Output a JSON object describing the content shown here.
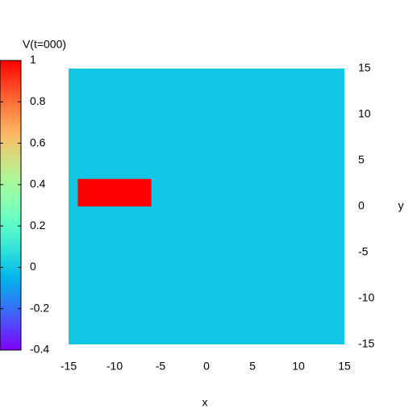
{
  "chart_data": {
    "type": "heatmap",
    "xlabel": "x",
    "ylabel": "y",
    "xlim": [
      -15,
      15
    ],
    "xticks": [
      -15,
      -10,
      -5,
      0,
      5,
      10,
      15
    ],
    "ylim": [
      -15,
      15
    ],
    "yticks": [
      -15,
      -10,
      -5,
      0,
      5,
      10,
      15
    ],
    "colormap": "rainbow",
    "field": {
      "background": 0,
      "patches": [
        {
          "xrange": [
            -14,
            -6
          ],
          "yrange": [
            0,
            3
          ],
          "value": 1
        }
      ]
    },
    "colorbar": {
      "title": "V(t=000)",
      "lim": [
        -0.4,
        1
      ],
      "ticks": [
        1,
        0.8,
        0.6,
        0.4,
        0.2,
        0,
        -0.2,
        -0.4
      ]
    }
  }
}
